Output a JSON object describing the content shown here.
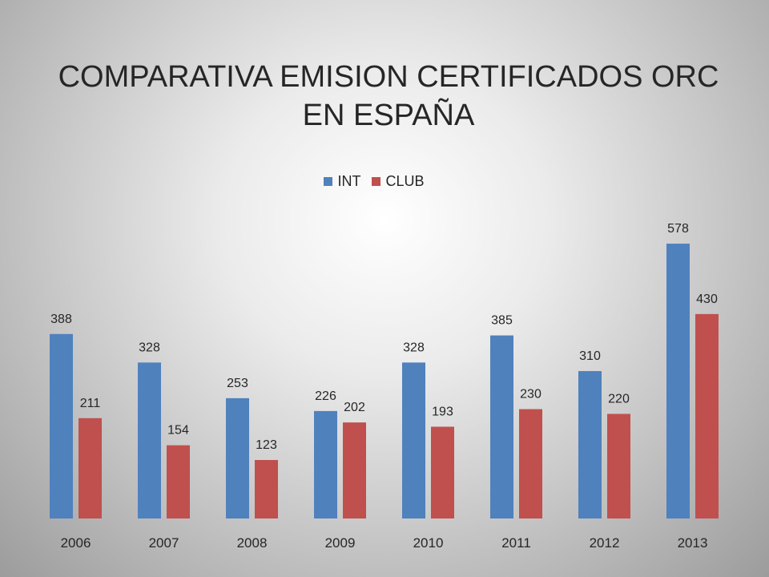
{
  "chart_data": {
    "type": "bar",
    "title_lines": [
      "COMPARATIVA EMISION CERTIFICADOS ORC",
      "EN ESPAÑA"
    ],
    "categories": [
      "2006",
      "2007",
      "2008",
      "2009",
      "2010",
      "2011",
      "2012",
      "2013"
    ],
    "series": [
      {
        "name": "INT",
        "color": "#4f81bd",
        "values": [
          388,
          328,
          253,
          226,
          328,
          385,
          310,
          578
        ]
      },
      {
        "name": "CLUB",
        "color": "#c0504d",
        "values": [
          211,
          154,
          123,
          202,
          193,
          230,
          220,
          430
        ]
      }
    ],
    "ylim": [
      0,
      600
    ],
    "grid": false,
    "legend_position": "top",
    "data_labels": true
  }
}
